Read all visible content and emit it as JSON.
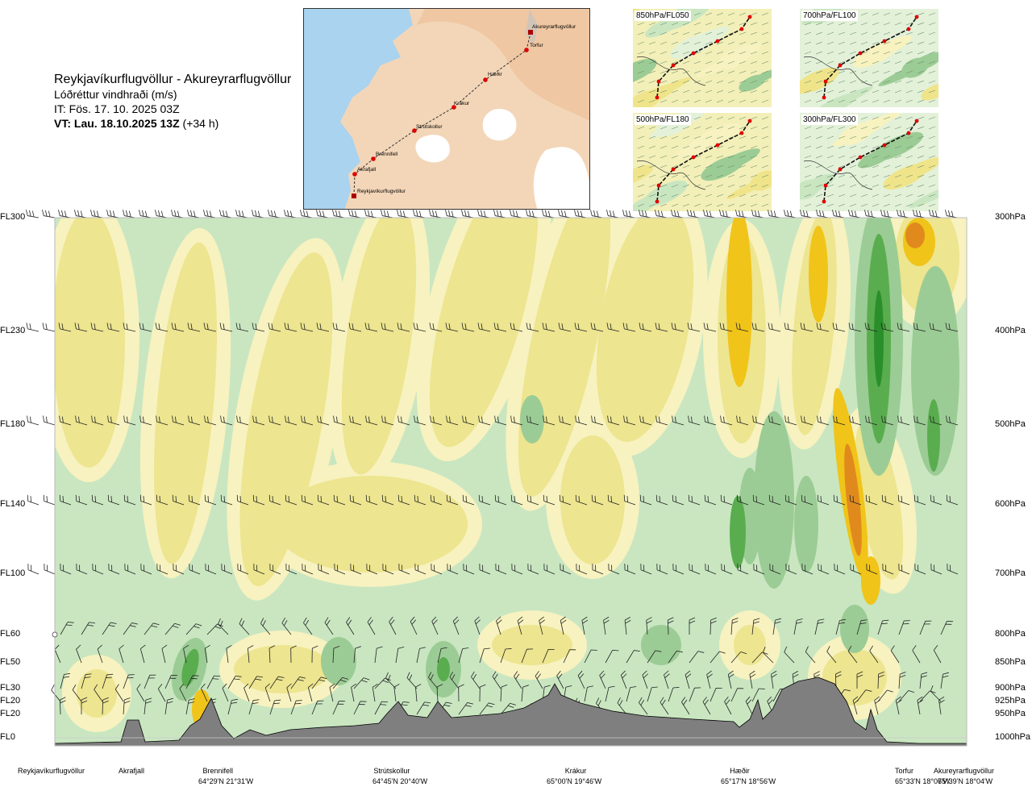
{
  "header": {
    "route": "Reykjavíkurflugvöllur - Akureyrarflugvöllur",
    "variable": "Lóðréttur vindhraði (m/s)",
    "issue_time": "IT: Fös. 17. 10. 2025 03Z",
    "valid_prefix": "VT: Lau. 18.10.2025 13Z",
    "valid_suffix": "(+34 h)"
  },
  "overview_map": {
    "land_color": "#f3d6b8",
    "sea_color": "#a9d3ef",
    "glacier_color": "#ffffff",
    "route_color": "#cc0000",
    "waypoints": [
      "Akureyrarflugvöllur",
      "Torfur",
      "Hæðir",
      "Krákur",
      "Strútskollur",
      "Brennifell",
      "Akrafjall",
      "Reykjavíkurflugvöllur"
    ]
  },
  "level_maps": [
    {
      "label": "850hPa/FL050"
    },
    {
      "label": "700hPa/FL100"
    },
    {
      "label": "500hPa/FL180"
    },
    {
      "label": "300hPa/FL300"
    }
  ],
  "chart_data": {
    "type": "heatmap",
    "title": "Lóðréttur vindhraði (m/s)",
    "xlabel": "",
    "ylabel": "",
    "y_levels": [
      {
        "fl": "FL300",
        "hpa": "300hPa"
      },
      {
        "fl": "FL230",
        "hpa": "400hPa"
      },
      {
        "fl": "FL180",
        "hpa": "500hPa"
      },
      {
        "fl": "FL140",
        "hpa": "600hPa"
      },
      {
        "fl": "FL100",
        "hpa": "700hPa"
      },
      {
        "fl": "FL60",
        "hpa": "800hPa"
      },
      {
        "fl": "FL50",
        "hpa": "850hPa"
      },
      {
        "fl": "FL30",
        "hpa": "900hPa"
      },
      {
        "fl": "FL20",
        "hpa": "925hPa"
      },
      {
        "fl": "FL20",
        "hpa": "950hPa"
      },
      {
        "fl": "FL0",
        "hpa": "1000hPa"
      }
    ],
    "locations": [
      {
        "name": "Reykjavíkurflugvöllur",
        "coord": ""
      },
      {
        "name": "Akrafjall",
        "coord": ""
      },
      {
        "name": "Brennifell",
        "coord": "64°29'N 21°31'W"
      },
      {
        "name": "Strútskollur",
        "coord": "64°45'N 20°40'W"
      },
      {
        "name": "Krákur",
        "coord": "65°00'N 19°46'W"
      },
      {
        "name": "Hæðir",
        "coord": "65°17'N 18°56'W"
      },
      {
        "name": "Torfur",
        "coord": "65°33'N 18°07'W"
      },
      {
        "name": "Akureyrarflugvöllur",
        "coord": "65°39'N 18°04'W"
      }
    ],
    "color_classes": {
      "strong_down": "#e08a1e",
      "mod_down": "#f0c419",
      "weak_down": "#ede58f",
      "very_weak_down": "#f7f2bf",
      "neutral": "#fdfde6",
      "very_weak_up": "#e3f1d9",
      "weak_up": "#c9e6c1",
      "mod_up": "#9ccc95",
      "strong_up": "#5aad4f",
      "very_strong_up": "#2a8f2a",
      "terrain": "#7f7f7f"
    }
  }
}
